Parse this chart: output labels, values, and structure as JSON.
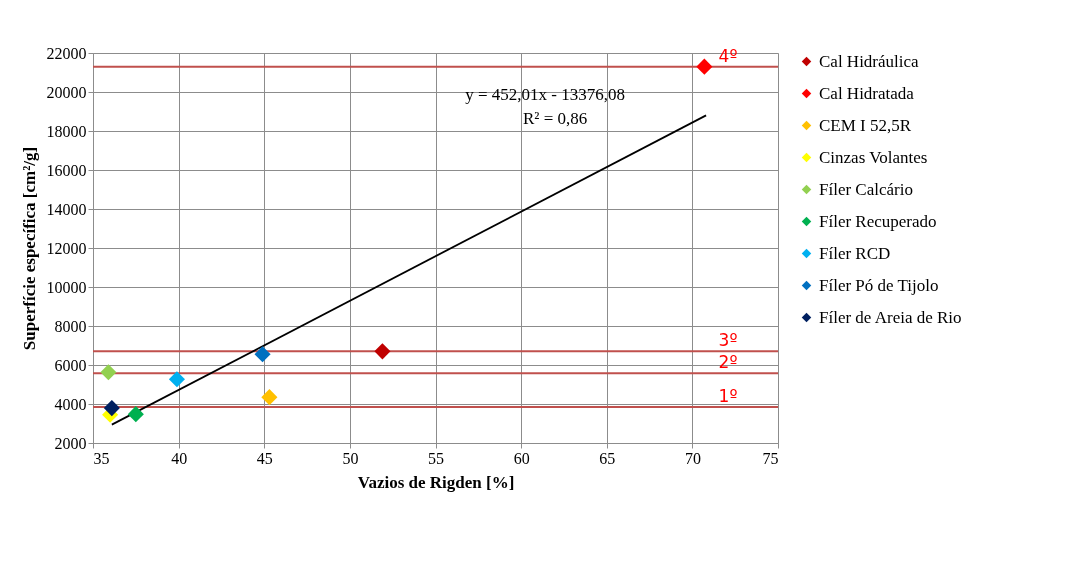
{
  "chart_data": {
    "type": "scatter",
    "xlabel": "Vazios de Rigden [%]",
    "ylabel": "Superfície específica [cm²/g]",
    "xlim": [
      35,
      75
    ],
    "xticks": [
      35,
      40,
      45,
      50,
      55,
      60,
      65,
      70,
      75
    ],
    "ylim": [
      2000,
      22000
    ],
    "yticks": [
      2000,
      4000,
      6000,
      8000,
      10000,
      12000,
      14000,
      16000,
      18000,
      20000,
      22000
    ],
    "grid": true,
    "legend": "right",
    "marker": "diamond",
    "series": [
      {
        "name": "Cal Hidráulica",
        "color": "#c00000",
        "x": [
          51.9
        ],
        "values": [
          6700
        ]
      },
      {
        "name": "Cal Hidratada",
        "color": "#ff0000",
        "x": [
          70.7
        ],
        "values": [
          21300
        ]
      },
      {
        "name": "CEM I 52,5R",
        "color": "#ffc000",
        "x": [
          45.3
        ],
        "values": [
          4350
        ]
      },
      {
        "name": "Cinzas Volantes",
        "color": "#ffff00",
        "x": [
          36.0
        ],
        "values": [
          3450
        ]
      },
      {
        "name": "Fíler Calcário",
        "color": "#92d050",
        "x": [
          35.9
        ],
        "values": [
          5630
        ]
      },
      {
        "name": "Fíler Recuperado",
        "color": "#00b050",
        "x": [
          37.5
        ],
        "values": [
          3480
        ]
      },
      {
        "name": "Fíler RCD",
        "color": "#00b0f0",
        "x": [
          39.9
        ],
        "values": [
          5270
        ]
      },
      {
        "name": "Fíler Pó de Tijolo",
        "color": "#0070c0",
        "x": [
          44.9
        ],
        "values": [
          6550
        ]
      },
      {
        "name": "Fíler de Areia de Rio",
        "color": "#002060",
        "x": [
          36.1
        ],
        "values": [
          3790
        ]
      },
      {
        "type": "line",
        "color": "#000000",
        "marker": "none",
        "x": [
          36.1,
          70.8
        ],
        "values": [
          2940,
          18800
        ]
      }
    ],
    "ref_lines": [
      {
        "axis": "y",
        "value": 21300,
        "color": "#c0504d"
      },
      {
        "axis": "y",
        "value": 6700,
        "color": "#c0504d"
      },
      {
        "axis": "y",
        "value": 5580,
        "color": "#c0504d"
      },
      {
        "axis": "y",
        "value": 3840,
        "color": "#c0504d"
      }
    ],
    "annotations": [
      "y = 452,01x - 13376,08",
      "R² = 0,86",
      {
        "text": "4º",
        "y": 21300
      },
      {
        "text": "3º",
        "y": 6700
      },
      {
        "text": "2º",
        "y": 5580
      },
      {
        "text": "1º",
        "y": 3840
      }
    ]
  }
}
